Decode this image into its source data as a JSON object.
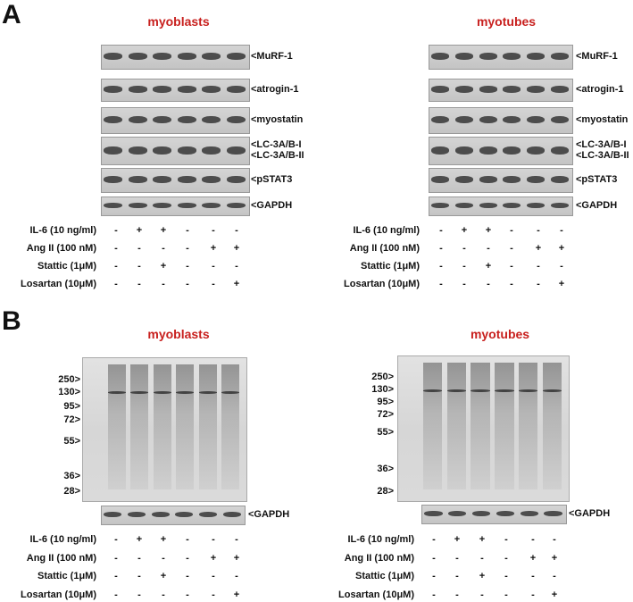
{
  "panels": [
    {
      "label": "A",
      "blots": [
        {
          "title": "myoblasts",
          "bands": [
            "<MuRF-1",
            "<atrogin-1",
            "<myostatin",
            "<LC-3A/B-I",
            "<LC-3A/B-II",
            "<pSTAT3",
            "<GAPDH"
          ],
          "treatments": [
            {
              "name": "IL-6 (10 ng/ml)",
              "signs": [
                "-",
                "+",
                "+",
                "-",
                "-",
                "-"
              ]
            },
            {
              "name": "Ang II (100 nM)",
              "signs": [
                "-",
                "-",
                "-",
                "-",
                "+",
                "+"
              ]
            },
            {
              "name": "Stattic (1μM)",
              "signs": [
                "-",
                "-",
                "+",
                "-",
                "-",
                "-"
              ]
            },
            {
              "name": "Losartan (10μM)",
              "signs": [
                "-",
                "-",
                "-",
                "-",
                "-",
                "+"
              ]
            }
          ]
        },
        {
          "title": "myotubes",
          "bands": [
            "<MuRF-1",
            "<atrogin-1",
            "<myostatin",
            "<LC-3A/B-I",
            "<LC-3A/B-II",
            "<pSTAT3",
            "<GAPDH"
          ],
          "treatments": [
            {
              "name": "IL-6 (10 ng/ml)",
              "signs": [
                "-",
                "+",
                "+",
                "-",
                "-",
                "-"
              ]
            },
            {
              "name": "Ang II (100 nM)",
              "signs": [
                "-",
                "-",
                "-",
                "-",
                "+",
                "+"
              ]
            },
            {
              "name": "Stattic (1μM)",
              "signs": [
                "-",
                "-",
                "+",
                "-",
                "-",
                "-"
              ]
            },
            {
              "name": "Losartan (10μM)",
              "signs": [
                "-",
                "-",
                "-",
                "-",
                "-",
                "+"
              ]
            }
          ]
        }
      ]
    },
    {
      "label": "B",
      "blots": [
        {
          "title": "myoblasts",
          "markers": [
            "250>",
            "130>",
            "95>",
            "72>",
            "55>",
            "36>",
            "28>"
          ],
          "bands": [
            "<GAPDH"
          ],
          "treatments": [
            {
              "name": "IL-6 (10 ng/ml)",
              "signs": [
                "-",
                "+",
                "+",
                "-",
                "-",
                "-"
              ]
            },
            {
              "name": "Ang II (100 nM)",
              "signs": [
                "-",
                "-",
                "-",
                "-",
                "+",
                "+"
              ]
            },
            {
              "name": "Stattic (1μM)",
              "signs": [
                "-",
                "-",
                "+",
                "-",
                "-",
                "-"
              ]
            },
            {
              "name": "Losartan (10μM)",
              "signs": [
                "-",
                "-",
                "-",
                "-",
                "-",
                "+"
              ]
            }
          ]
        },
        {
          "title": "myotubes",
          "markers": [
            "250>",
            "130>",
            "95>",
            "72>",
            "55>",
            "36>",
            "28>"
          ],
          "bands": [
            "<GAPDH"
          ],
          "treatments": [
            {
              "name": "IL-6 (10 ng/ml)",
              "signs": [
                "-",
                "+",
                "+",
                "-",
                "-",
                "-"
              ]
            },
            {
              "name": "Ang II (100 nM)",
              "signs": [
                "-",
                "-",
                "-",
                "-",
                "+",
                "+"
              ]
            },
            {
              "name": "Stattic (1μM)",
              "signs": [
                "-",
                "-",
                "+",
                "-",
                "-",
                "-"
              ]
            },
            {
              "name": "Losartan (10μM)",
              "signs": [
                "-",
                "-",
                "-",
                "-",
                "-",
                "+"
              ]
            }
          ]
        }
      ]
    }
  ]
}
